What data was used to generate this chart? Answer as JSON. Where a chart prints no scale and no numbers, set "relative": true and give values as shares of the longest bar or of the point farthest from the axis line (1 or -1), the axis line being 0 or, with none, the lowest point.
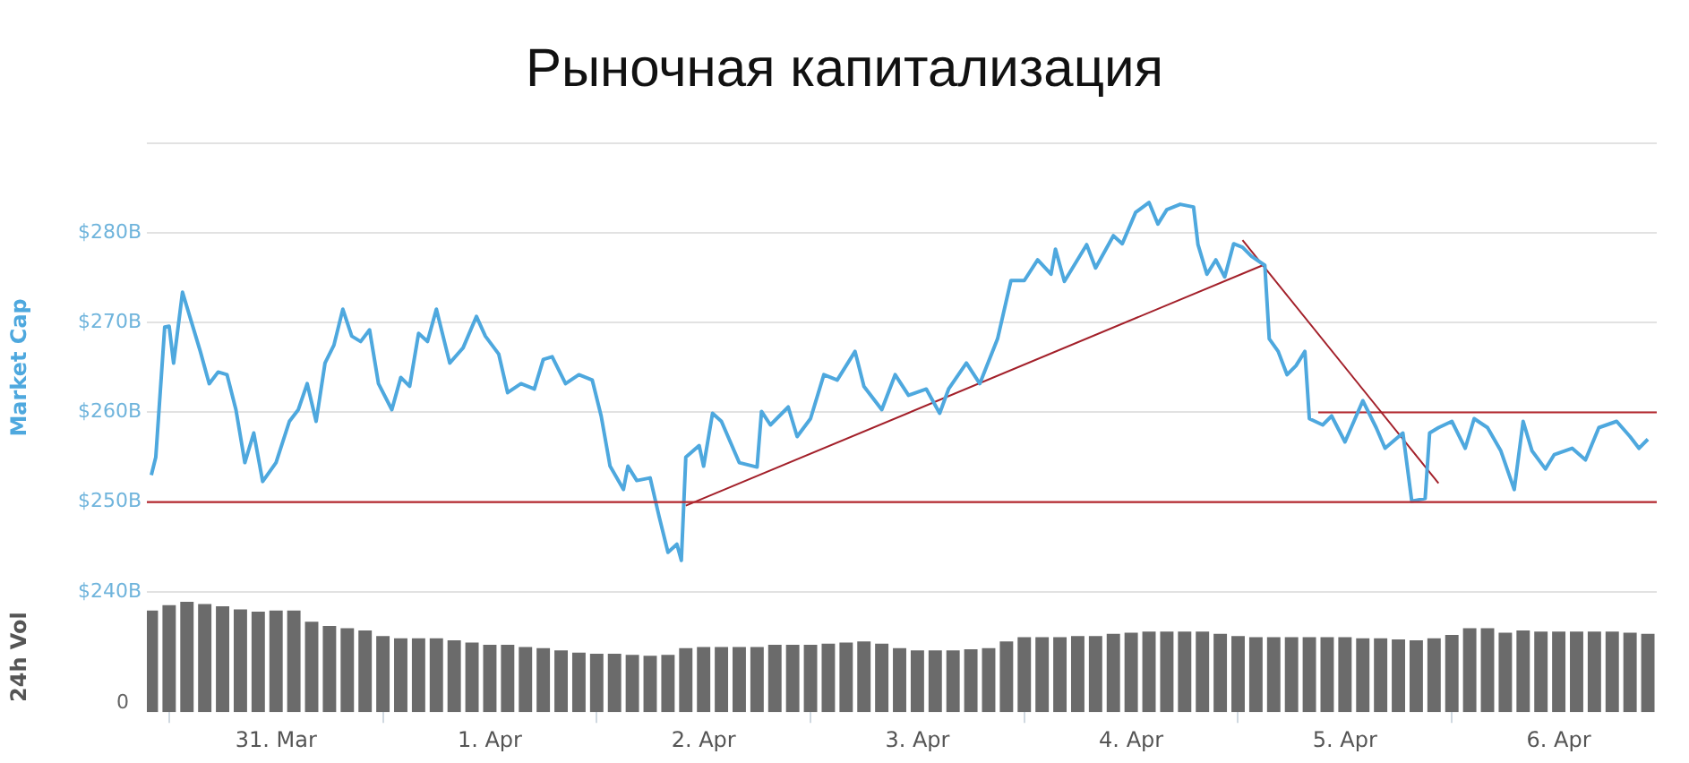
{
  "chart_data": [
    {
      "type": "line",
      "title": "Рыночная капитализация",
      "ylabel": "Market Cap",
      "marker": "none",
      "grid": "y",
      "tick_labels": "y",
      "xlim": [
        "--03-30T09:30",
        "--04-06T11:00"
      ],
      "ylim": [
        240,
        290
      ],
      "yticks": [
        {
          "value": 240,
          "label": "$240B"
        },
        {
          "value": 250,
          "label": "$250B"
        },
        {
          "value": 260,
          "label": "$260B"
        },
        {
          "value": 270,
          "label": "$270B"
        },
        {
          "value": 280,
          "label": "$280B"
        },
        {
          "value": 290,
          "label": null
        }
      ],
      "ref_lines": [
        {
          "axis": "y",
          "value": 250,
          "color": "#b52a30"
        }
      ],
      "series": [
        {
          "color": "#4ea8de",
          "x": [
            "--03-30T10:00",
            "--03-30T10:30",
            "--03-30T11:30",
            "--03-30T12:00",
            "--03-30T12:30",
            "--03-30T13:30",
            "--03-30T14:30",
            "--03-30T15:30",
            "--03-30T16:30",
            "--03-30T17:30",
            "--03-30T18:30",
            "--03-30T19:30",
            "--03-30T20:30",
            "--03-30T21:30",
            "--03-30T22:30",
            "--03-31T00:00",
            "--03-31T01:30",
            "--03-31T02:30",
            "--03-31T03:30",
            "--03-31T04:30",
            "--03-31T05:30",
            "--03-31T06:30",
            "--03-31T07:30",
            "--03-31T08:30",
            "--03-31T09:30",
            "--03-31T10:30",
            "--03-31T11:30",
            "--03-31T13:00",
            "--03-31T14:00",
            "--03-31T15:00",
            "--03-31T16:00",
            "--03-31T17:00",
            "--03-31T18:00",
            "--03-31T19:30",
            "--03-31T21:00",
            "--03-31T22:30",
            "--03-31T23:30",
            "--04-01T01:00",
            "--04-01T02:00",
            "--04-01T03:30",
            "--04-01T05:00",
            "--04-01T06:00",
            "--04-01T07:00",
            "--04-01T08:30",
            "--04-01T10:00",
            "--04-01T11:30",
            "--04-01T12:30",
            "--04-01T13:30",
            "--04-01T15:00",
            "--04-01T15:30",
            "--04-01T16:30",
            "--04-01T18:00",
            "--04-01T19:00",
            "--04-01T20:00",
            "--04-01T21:00",
            "--04-01T21:30",
            "--04-01T22:00",
            "--04-01T23:30",
            "--04-02T00:00",
            "--04-02T01:00",
            "--04-02T02:00",
            "--04-02T04:00",
            "--04-02T06:00",
            "--04-02T06:30",
            "--04-02T07:30",
            "--04-02T09:30",
            "--04-02T10:30",
            "--04-02T12:00",
            "--04-02T13:30",
            "--04-02T15:00",
            "--04-02T17:00",
            "--04-02T18:00",
            "--04-02T20:00",
            "--04-02T21:30",
            "--04-02T23:00",
            "--04-03T01:00",
            "--04-03T02:30",
            "--04-03T03:30",
            "--04-03T05:30",
            "--04-03T07:00",
            "--04-03T09:00",
            "--04-03T10:30",
            "--04-03T12:00",
            "--04-03T13:30",
            "--04-03T15:00",
            "--04-03T15:30",
            "--04-03T16:30",
            "--04-03T19:00",
            "--04-03T20:00",
            "--04-03T22:00",
            "--04-03T23:00",
            "--04-04T00:30",
            "--04-04T02:00",
            "--04-04T03:00",
            "--04-04T04:00",
            "--04-04T05:30",
            "--04-04T07:00",
            "--04-04T07:30",
            "--04-04T08:30",
            "--04-04T09:30",
            "--04-04T10:30",
            "--04-04T11:30",
            "--04-04T12:30",
            "--04-04T13:30",
            "--04-04T15:00",
            "--04-04T15:30",
            "--04-04T16:30",
            "--04-04T17:30",
            "--04-04T18:30",
            "--04-04T19:30",
            "--04-04T20:00",
            "--04-04T21:30",
            "--04-04T22:30",
            "--04-05T00:00",
            "--04-05T02:00",
            "--04-05T03:30",
            "--04-05T04:30",
            "--04-05T06:30",
            "--04-05T07:30",
            "--04-05T09:00",
            "--04-05T09:30",
            "--04-05T10:30",
            "--04-05T12:00",
            "--04-05T13:30",
            "--04-05T14:30",
            "--04-05T16:00",
            "--04-05T17:30",
            "--04-05T19:00",
            "--04-05T20:00",
            "--04-05T21:00",
            "--04-05T22:30",
            "--04-05T23:30",
            "--04-06T01:30",
            "--04-06T03:00",
            "--04-06T04:30",
            "--04-06T06:30",
            "--04-06T08:00",
            "--04-06T09:00",
            "--04-06T10:00"
          ],
          "values": [
            253.0,
            255.0,
            269.5,
            269.6,
            265.5,
            273.4,
            270.1,
            266.8,
            263.2,
            264.5,
            264.2,
            260.3,
            254.4,
            257.7,
            252.3,
            254.4,
            259.0,
            260.3,
            263.2,
            259.0,
            265.5,
            267.5,
            271.5,
            268.5,
            267.9,
            269.2,
            263.2,
            260.3,
            263.9,
            262.9,
            268.8,
            267.9,
            271.5,
            265.5,
            267.2,
            270.7,
            268.5,
            266.5,
            262.2,
            263.2,
            262.6,
            265.9,
            266.2,
            263.2,
            264.2,
            263.6,
            259.6,
            254.0,
            251.4,
            254.0,
            252.4,
            252.7,
            248.4,
            244.4,
            245.3,
            243.5,
            255.0,
            256.3,
            254.0,
            259.9,
            259.0,
            254.4,
            253.9,
            260.1,
            258.6,
            260.6,
            257.3,
            259.3,
            264.2,
            263.6,
            266.8,
            262.9,
            260.3,
            264.2,
            261.9,
            262.6,
            259.9,
            262.6,
            265.5,
            263.2,
            268.2,
            274.7,
            274.7,
            277.0,
            275.4,
            278.2,
            274.6,
            278.7,
            276.1,
            279.7,
            278.8,
            282.3,
            283.4,
            281.0,
            282.6,
            283.2,
            282.9,
            278.7,
            275.4,
            277.0,
            275.1,
            278.8,
            278.4,
            277.4,
            276.4,
            268.2,
            266.8,
            264.2,
            265.2,
            266.8,
            259.3,
            258.6,
            259.6,
            256.7,
            261.3,
            258.3,
            256.0,
            257.7,
            250.1,
            250.4,
            257.7,
            258.3,
            259.0,
            256.0,
            259.3,
            258.3,
            255.7,
            251.4,
            259.0,
            255.7,
            253.7,
            255.3,
            256.0,
            254.7,
            258.3,
            259.0,
            257.3,
            256.0,
            257.0
          ]
        },
        {
          "color": "#a3202a",
          "x": [
            "--04-01T22:00",
            "--04-04T15:00"
          ],
          "values": [
            249.6,
            276.5
          ]
        },
        {
          "color": "#a3202a",
          "x": [
            "--04-04T12:30",
            "--04-05T10:30"
          ],
          "values": [
            279.2,
            252.1
          ]
        },
        {
          "color": "#b52a30",
          "x": [
            "--04-04T21:00",
            "--04-06T11:00"
          ],
          "values": [
            260,
            260
          ]
        }
      ]
    },
    {
      "type": "bar",
      "ylabel": "24h Vol",
      "relative": true,
      "tick_labels": "x",
      "annotations": [
        "0"
      ],
      "xlim": [
        "--03-30T09:30",
        "--04-06T11:00"
      ],
      "xticks": [
        {
          "value": "--03-31",
          "label": "31. Mar"
        },
        {
          "value": "--04-01",
          "label": "1. Apr"
        },
        {
          "value": "--04-02",
          "label": "2. Apr"
        },
        {
          "value": "--04-03",
          "label": "3. Apr"
        },
        {
          "value": "--04-04",
          "label": "4. Apr"
        },
        {
          "value": "--04-05",
          "label": "5. Apr"
        },
        {
          "value": "--04-06",
          "label": "6. Apr"
        }
      ],
      "series": [
        {
          "color": "#6b6b6b",
          "x": [
            "--03-30T10:00",
            "--03-30T12:00",
            "--03-30T14:00",
            "--03-30T16:00",
            "--03-30T18:00",
            "--03-30T20:00",
            "--03-30T22:00",
            "--03-31T00:00",
            "--03-31T02:00",
            "--03-31T04:00",
            "--03-31T06:00",
            "--03-31T08:00",
            "--03-31T10:00",
            "--03-31T12:00",
            "--03-31T14:00",
            "--03-31T16:00",
            "--03-31T18:00",
            "--03-31T20:00",
            "--03-31T22:00",
            "--04-01T00:00",
            "--04-01T02:00",
            "--04-01T04:00",
            "--04-01T06:00",
            "--04-01T08:00",
            "--04-01T10:00",
            "--04-01T12:00",
            "--04-01T14:00",
            "--04-01T16:00",
            "--04-01T18:00",
            "--04-01T20:00",
            "--04-01T22:00",
            "--04-02T00:00",
            "--04-02T02:00",
            "--04-02T04:00",
            "--04-02T06:00",
            "--04-02T08:00",
            "--04-02T10:00",
            "--04-02T12:00",
            "--04-02T14:00",
            "--04-02T16:00",
            "--04-02T18:00",
            "--04-02T20:00",
            "--04-02T22:00",
            "--04-03T00:00",
            "--04-03T02:00",
            "--04-03T04:00",
            "--04-03T06:00",
            "--04-03T08:00",
            "--04-03T10:00",
            "--04-03T12:00",
            "--04-03T14:00",
            "--04-03T16:00",
            "--04-03T18:00",
            "--04-03T20:00",
            "--04-03T22:00",
            "--04-04T00:00",
            "--04-04T02:00",
            "--04-04T04:00",
            "--04-04T06:00",
            "--04-04T08:00",
            "--04-04T10:00",
            "--04-04T12:00",
            "--04-04T14:00",
            "--04-04T16:00",
            "--04-04T18:00",
            "--04-04T20:00",
            "--04-04T22:00",
            "--04-05T00:00",
            "--04-05T02:00",
            "--04-05T04:00",
            "--04-05T06:00",
            "--04-05T08:00",
            "--04-05T10:00",
            "--04-05T12:00",
            "--04-05T14:00",
            "--04-05T16:00",
            "--04-05T18:00",
            "--04-05T20:00",
            "--04-05T22:00",
            "--04-06T00:00",
            "--04-06T02:00",
            "--04-06T04:00",
            "--04-06T06:00",
            "--04-06T08:00",
            "--04-06T10:00"
          ],
          "values": [
            0.92,
            0.97,
            1.0,
            0.98,
            0.96,
            0.93,
            0.91,
            0.92,
            0.92,
            0.82,
            0.78,
            0.76,
            0.74,
            0.69,
            0.67,
            0.67,
            0.67,
            0.65,
            0.63,
            0.61,
            0.61,
            0.59,
            0.58,
            0.56,
            0.54,
            0.53,
            0.53,
            0.52,
            0.51,
            0.52,
            0.58,
            0.59,
            0.59,
            0.59,
            0.59,
            0.61,
            0.61,
            0.61,
            0.62,
            0.63,
            0.64,
            0.62,
            0.58,
            0.56,
            0.56,
            0.56,
            0.57,
            0.58,
            0.64,
            0.68,
            0.68,
            0.68,
            0.69,
            0.69,
            0.71,
            0.72,
            0.73,
            0.73,
            0.73,
            0.73,
            0.71,
            0.69,
            0.68,
            0.68,
            0.68,
            0.68,
            0.68,
            0.68,
            0.67,
            0.67,
            0.66,
            0.65,
            0.67,
            0.7,
            0.76,
            0.76,
            0.72,
            0.74,
            0.73,
            0.73,
            0.73,
            0.73,
            0.73,
            0.72,
            0.71
          ]
        }
      ]
    }
  ]
}
